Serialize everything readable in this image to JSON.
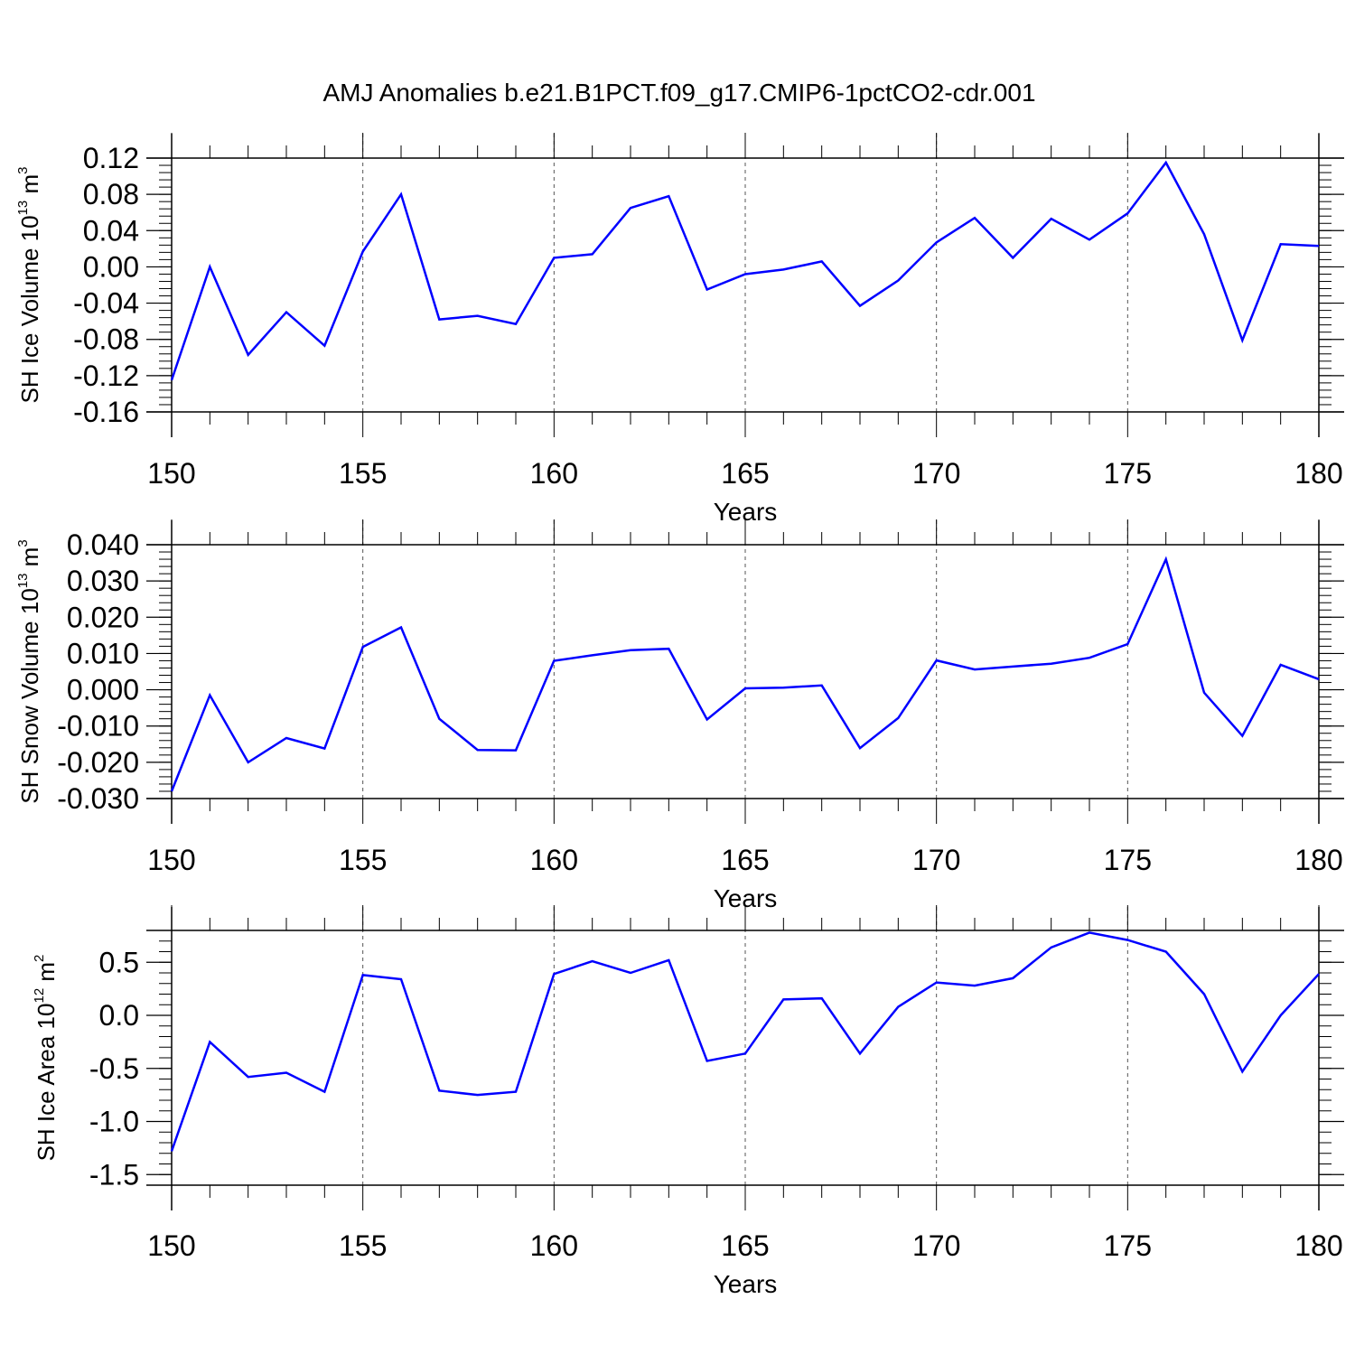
{
  "title": "AMJ Anomalies b.e21.B1PCT.f09_g17.CMIP6-1pctCO2-cdr.001",
  "line_color": "#0000ff",
  "chart_data": [
    {
      "type": "line",
      "ylabel_base": "SH Ice Volume 10",
      "ylabel_exp": "13",
      "ylabel_unit": " m",
      "ylabel_unit_exp": "3",
      "xlabel": "Years",
      "xlim": [
        150,
        180
      ],
      "ylim": [
        -0.16,
        0.12
      ],
      "xticks": [
        150,
        155,
        160,
        165,
        170,
        175,
        180
      ],
      "xtick_labels": [
        "150",
        "155",
        "160",
        "165",
        "170",
        "175",
        "180"
      ],
      "yticks": [
        -0.16,
        -0.12,
        -0.08,
        -0.04,
        0.0,
        0.04,
        0.08,
        0.12
      ],
      "ytick_labels": [
        "-0.16",
        "-0.12",
        "-0.08",
        "-0.04",
        "0.00",
        "0.04",
        "0.08",
        "0.12"
      ],
      "y_minor_step": 0.008,
      "gridlines_x": [
        155,
        160,
        165,
        170,
        175
      ],
      "x": [
        150,
        151,
        152,
        153,
        154,
        155,
        156,
        157,
        158,
        159,
        160,
        161,
        162,
        163,
        164,
        165,
        166,
        167,
        168,
        169,
        170,
        171,
        172,
        173,
        174,
        175,
        176,
        177,
        178,
        179,
        180
      ],
      "values": [
        -0.125,
        0.0,
        -0.097,
        -0.05,
        -0.087,
        0.017,
        0.08,
        -0.058,
        -0.054,
        -0.063,
        0.01,
        0.014,
        0.065,
        0.078,
        -0.025,
        -0.008,
        -0.003,
        0.006,
        -0.043,
        -0.015,
        0.027,
        0.054,
        0.01,
        0.053,
        0.03,
        0.059,
        0.115,
        0.036,
        -0.081,
        0.025,
        0.023
      ]
    },
    {
      "type": "line",
      "ylabel_base": "SH Snow Volume 10",
      "ylabel_exp": "13",
      "ylabel_unit": " m",
      "ylabel_unit_exp": "3",
      "xlabel": "Years",
      "xlim": [
        150,
        180
      ],
      "ylim": [
        -0.03,
        0.04
      ],
      "xticks": [
        150,
        155,
        160,
        165,
        170,
        175,
        180
      ],
      "xtick_labels": [
        "150",
        "155",
        "160",
        "165",
        "170",
        "175",
        "180"
      ],
      "yticks": [
        -0.03,
        -0.02,
        -0.01,
        0.0,
        0.01,
        0.02,
        0.03,
        0.04
      ],
      "ytick_labels": [
        "-0.030",
        "-0.020",
        "-0.010",
        "0.000",
        "0.010",
        "0.020",
        "0.030",
        "0.040"
      ],
      "y_minor_step": 0.002,
      "gridlines_x": [
        155,
        160,
        165,
        170,
        175
      ],
      "x": [
        150,
        151,
        152,
        153,
        154,
        155,
        156,
        157,
        158,
        159,
        160,
        161,
        162,
        163,
        164,
        165,
        166,
        167,
        168,
        169,
        170,
        171,
        172,
        173,
        174,
        175,
        176,
        177,
        178,
        179,
        180
      ],
      "values": [
        -0.028,
        -0.0015,
        -0.02,
        -0.0133,
        -0.0162,
        0.0118,
        0.0172,
        -0.008,
        -0.0166,
        -0.0167,
        0.008,
        0.0095,
        0.0109,
        0.0113,
        -0.0082,
        0.0004,
        0.0006,
        0.0012,
        -0.0161,
        -0.0078,
        0.0081,
        0.0056,
        0.0064,
        0.0072,
        0.0088,
        0.0126,
        0.036,
        -0.0008,
        -0.0127,
        0.0069,
        0.0029
      ]
    },
    {
      "type": "line",
      "ylabel_base": "SH Ice Area 10",
      "ylabel_exp": "12",
      "ylabel_unit": " m",
      "ylabel_unit_exp": "2",
      "xlabel": "Years",
      "xlim": [
        150,
        180
      ],
      "ylim": [
        -1.6,
        0.8
      ],
      "xticks": [
        150,
        155,
        160,
        165,
        170,
        175,
        180
      ],
      "xtick_labels": [
        "150",
        "155",
        "160",
        "165",
        "170",
        "175",
        "180"
      ],
      "yticks": [
        -1.5,
        -1.0,
        -0.5,
        0.0,
        0.5
      ],
      "ytick_labels": [
        "-1.5",
        "-1.0",
        "-0.5",
        "0.0",
        "0.5"
      ],
      "y_minor_step": 0.1,
      "gridlines_x": [
        155,
        160,
        165,
        170,
        175
      ],
      "x": [
        150,
        151,
        152,
        153,
        154,
        155,
        156,
        157,
        158,
        159,
        160,
        161,
        162,
        163,
        164,
        165,
        166,
        167,
        168,
        169,
        170,
        171,
        172,
        173,
        174,
        175,
        176,
        177,
        178,
        179,
        180
      ],
      "values": [
        -1.28,
        -0.25,
        -0.58,
        -0.54,
        -0.72,
        0.38,
        0.34,
        -0.71,
        -0.75,
        -0.72,
        0.39,
        0.51,
        0.4,
        0.52,
        -0.43,
        -0.36,
        0.15,
        0.16,
        -0.36,
        0.08,
        0.31,
        0.28,
        0.35,
        0.64,
        0.78,
        0.71,
        0.6,
        0.2,
        -0.53,
        0.0,
        0.39
      ]
    }
  ]
}
